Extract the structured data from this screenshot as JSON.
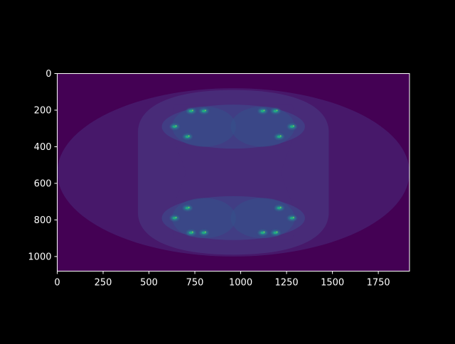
{
  "chart_data": {
    "type": "heatmap",
    "title": "",
    "xlabel": "",
    "ylabel": "",
    "xlim": [
      0,
      1920
    ],
    "ylim": [
      1080,
      0
    ],
    "y_axis_inverted": true,
    "grid": false,
    "legend": "none",
    "colormap": "viridis",
    "xticks": [
      0,
      250,
      500,
      750,
      1000,
      1250,
      1500,
      1750
    ],
    "yticks": [
      0,
      200,
      400,
      600,
      800,
      1000
    ],
    "background_color": "#000000",
    "axis_color": "#ffffff",
    "image_width": 1920,
    "image_height": 1080,
    "image_description_levels": [
      {
        "level": 0,
        "color": "#440154"
      },
      {
        "level": 1,
        "color": "#47186a"
      },
      {
        "level": 2,
        "color": "#482b78"
      },
      {
        "level": 3,
        "color": "#413d84"
      },
      {
        "level": 4,
        "color": "#35508b"
      },
      {
        "level": 5,
        "color": "#2a788e"
      },
      {
        "level": 6,
        "color": "#22a884"
      },
      {
        "level": 7,
        "color": "#7ad151"
      }
    ]
  }
}
